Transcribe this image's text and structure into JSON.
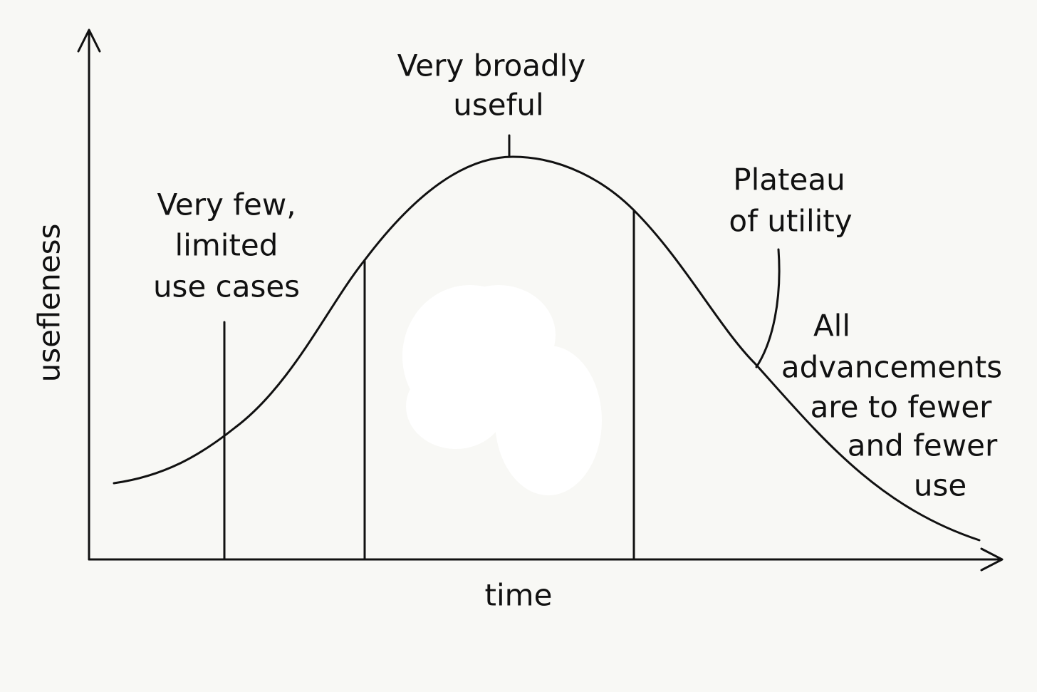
{
  "axes": {
    "y_label": "usefleness",
    "x_label": "time"
  },
  "annotations": {
    "peak": {
      "lines": [
        "Very broadly",
        "useful"
      ]
    },
    "early": {
      "lines": [
        "Very few,",
        "limited",
        "use cases"
      ]
    },
    "plateau": {
      "lines": [
        "Plateau",
        "of utility"
      ]
    },
    "decline": {
      "lines": [
        "All",
        "advancements",
        "are to fewer",
        "and fewer",
        "use"
      ]
    }
  }
}
